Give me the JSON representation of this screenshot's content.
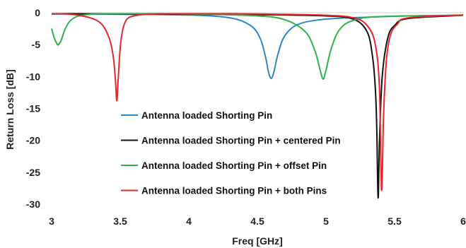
{
  "chart_data": {
    "type": "line",
    "title": "",
    "xlabel": "Freq [GHz]",
    "ylabel": "Return Loss [dB]",
    "xlim": [
      3,
      6
    ],
    "ylim": [
      -30,
      0
    ],
    "xticks": [
      "3",
      "3.5",
      "4",
      "4.5",
      "5",
      "5.5",
      "6"
    ],
    "yticks": [
      "0",
      "-5",
      "-10",
      "-15",
      "-20",
      "-25",
      "-30"
    ],
    "grid": false,
    "legend_position": "lower-left",
    "series": [
      {
        "name": "Antenna loaded Shorting Pin",
        "color": "#2e86c8",
        "x": [
          3.0,
          3.5,
          4.0,
          4.3,
          4.45,
          4.52,
          4.56,
          4.58,
          4.6,
          4.62,
          4.65,
          4.7,
          4.8,
          5.0,
          5.3,
          5.6,
          6.0
        ],
        "y": [
          -0.2,
          -0.25,
          -0.35,
          -0.8,
          -2.0,
          -4.0,
          -7.0,
          -9.2,
          -10.3,
          -9.3,
          -6.5,
          -3.6,
          -1.8,
          -1.0,
          -0.7,
          -0.5,
          -0.4
        ]
      },
      {
        "name": "Antenna loaded Shorting Pin + centered Pin",
        "color": "#111111",
        "x": [
          3.0,
          3.5,
          4.0,
          4.5,
          5.0,
          5.2,
          5.3,
          5.34,
          5.36,
          5.37,
          5.38,
          5.39,
          5.41,
          5.45,
          5.5,
          5.6,
          6.0
        ],
        "y": [
          -0.15,
          -0.2,
          -0.25,
          -0.3,
          -0.5,
          -1.0,
          -3.0,
          -7.0,
          -12.0,
          -18.0,
          -29.0,
          -20.0,
          -10.0,
          -4.0,
          -2.0,
          -0.9,
          -0.4
        ]
      },
      {
        "name": "Antenna loaded Shorting Pin + offset Pin",
        "color": "#2db34a",
        "x": [
          3.0,
          3.02,
          3.04,
          3.05,
          3.07,
          3.1,
          3.15,
          3.25,
          3.5,
          4.0,
          4.5,
          4.7,
          4.85,
          4.92,
          4.96,
          4.98,
          5.0,
          5.04,
          5.1,
          5.2,
          5.4,
          6.0
        ],
        "y": [
          -2.5,
          -4.0,
          -4.9,
          -5.0,
          -4.3,
          -2.5,
          -1.0,
          -0.3,
          -0.15,
          -0.2,
          -0.5,
          -1.1,
          -3.0,
          -6.0,
          -9.2,
          -10.4,
          -9.0,
          -5.5,
          -2.6,
          -1.2,
          -0.6,
          -0.4
        ]
      },
      {
        "name": "Antenna loaded Shorting Pin + both Pins",
        "color": "#e8262a",
        "x": [
          3.0,
          3.2,
          3.35,
          3.42,
          3.45,
          3.465,
          3.475,
          3.485,
          3.5,
          3.52,
          3.55,
          3.6,
          3.7,
          4.0,
          4.5,
          5.0,
          5.2,
          5.3,
          5.36,
          5.39,
          5.405,
          5.42,
          5.44,
          5.47,
          5.52,
          5.6,
          6.0
        ],
        "y": [
          -0.1,
          -0.4,
          -1.5,
          -4.0,
          -7.0,
          -10.5,
          -13.8,
          -10.5,
          -5.5,
          -2.5,
          -1.0,
          -0.5,
          -0.25,
          -0.15,
          -0.2,
          -0.4,
          -0.8,
          -2.0,
          -5.0,
          -12.0,
          -27.8,
          -16.0,
          -7.5,
          -3.5,
          -1.8,
          -0.8,
          -0.35
        ]
      }
    ]
  }
}
